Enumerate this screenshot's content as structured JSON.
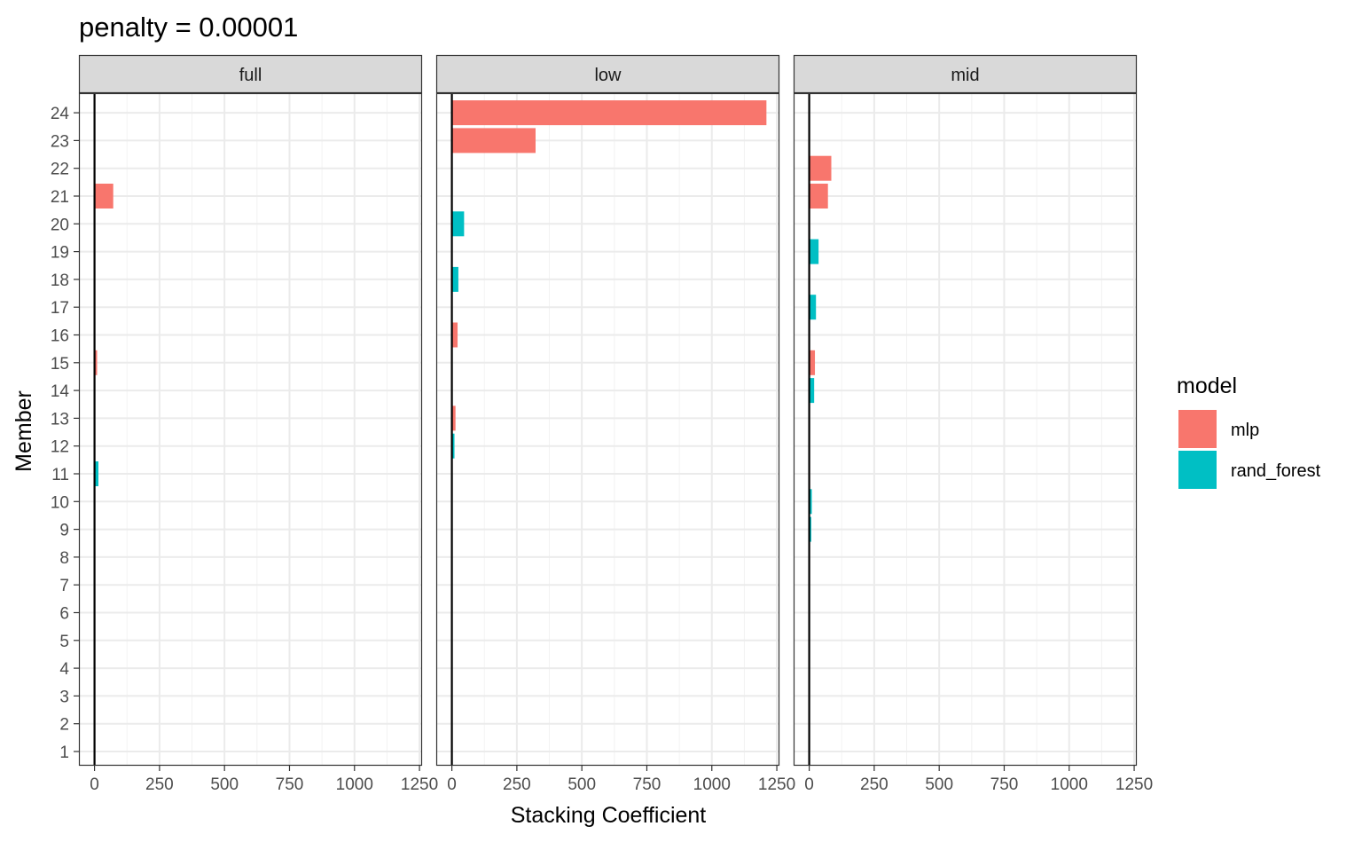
{
  "chart_data": {
    "type": "bar",
    "orientation": "horizontal",
    "title": "penalty = 0.00001",
    "xlabel": "Stacking Coefficient",
    "ylabel": "Member",
    "xlim": [
      -60,
      1260
    ],
    "x_ticks": [
      0,
      250,
      500,
      750,
      1000,
      1250
    ],
    "x_tick_labels": [
      "0",
      "250",
      "500",
      "750",
      "1000",
      "1250"
    ],
    "y_ticks": [
      1,
      2,
      3,
      4,
      5,
      6,
      7,
      8,
      9,
      10,
      11,
      12,
      13,
      14,
      15,
      16,
      17,
      18,
      19,
      20,
      21,
      22,
      23,
      24
    ],
    "y_tick_labels": [
      "1",
      "2",
      "3",
      "4",
      "5",
      "6",
      "7",
      "8",
      "9",
      "10",
      "11",
      "12",
      "13",
      "14",
      "15",
      "16",
      "17",
      "18",
      "19",
      "20",
      "21",
      "22",
      "23",
      "24"
    ],
    "grid": true,
    "legend": {
      "title": "model",
      "placement": "right",
      "entries": [
        {
          "label": "mlp",
          "color": "#F8766D"
        },
        {
          "label": "rand_forest",
          "color": "#00BFC4"
        }
      ]
    },
    "facets": [
      {
        "label": "full",
        "bars": [
          {
            "member": 21,
            "model": "mlp",
            "value": 72
          },
          {
            "member": 15,
            "model": "mlp",
            "value": 10
          },
          {
            "member": 11,
            "model": "rand_forest",
            "value": 15
          }
        ]
      },
      {
        "label": "low",
        "bars": [
          {
            "member": 24,
            "model": "mlp",
            "value": 1210
          },
          {
            "member": 23,
            "model": "mlp",
            "value": 322
          },
          {
            "member": 20,
            "model": "rand_forest",
            "value": 47
          },
          {
            "member": 18,
            "model": "rand_forest",
            "value": 25
          },
          {
            "member": 16,
            "model": "mlp",
            "value": 22
          },
          {
            "member": 13,
            "model": "mlp",
            "value": 14
          },
          {
            "member": 12,
            "model": "rand_forest",
            "value": 10
          }
        ]
      },
      {
        "label": "mid",
        "bars": [
          {
            "member": 22,
            "model": "mlp",
            "value": 85
          },
          {
            "member": 21,
            "model": "mlp",
            "value": 72
          },
          {
            "member": 19,
            "model": "rand_forest",
            "value": 36
          },
          {
            "member": 17,
            "model": "rand_forest",
            "value": 26
          },
          {
            "member": 15,
            "model": "mlp",
            "value": 22
          },
          {
            "member": 14,
            "model": "rand_forest",
            "value": 19
          },
          {
            "member": 10,
            "model": "rand_forest",
            "value": 10
          },
          {
            "member": 9,
            "model": "rand_forest",
            "value": 8
          }
        ]
      }
    ]
  }
}
